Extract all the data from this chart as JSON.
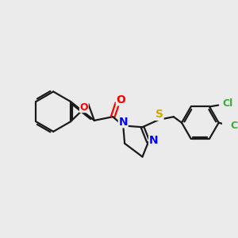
{
  "background_color": "#ebebeb",
  "bond_color": "#1a1a1a",
  "oxygen_color": "#ff0000",
  "nitrogen_color": "#0000ff",
  "sulfur_color": "#ccaa00",
  "chlorine_color": "#3aaa3a",
  "figsize": [
    3.0,
    3.0
  ],
  "dpi": 100,
  "xlim": [
    0,
    300
  ],
  "ylim": [
    0,
    300
  ]
}
